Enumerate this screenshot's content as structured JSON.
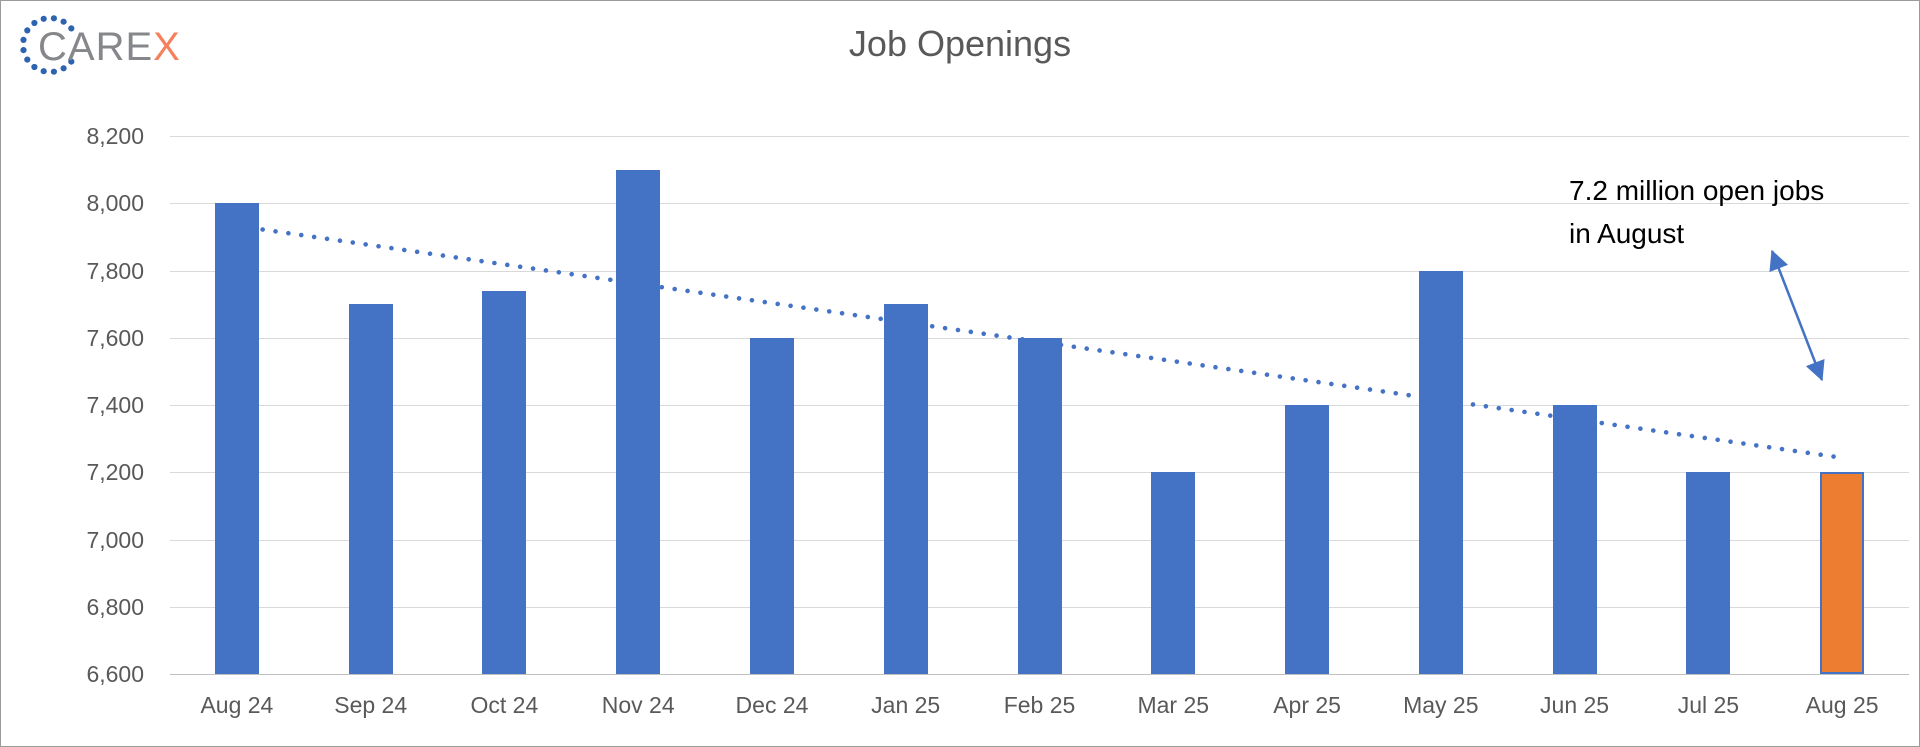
{
  "logo": {
    "text_gray": "CARE",
    "text_accent": "X",
    "dot_color": "#2E63B0",
    "text_gray_color": "#85878A",
    "text_accent_color": "#F5805B"
  },
  "colors": {
    "bar": "#4472C4",
    "highlight_bar": "#ED7D31",
    "highlight_border": "#4472C4",
    "trendline": "#4472C4",
    "arrow": "#4472C4",
    "gridline": "#D9D9D9",
    "axis_line": "#BFBFBF",
    "tick_text": "#595959",
    "title_text": "#595959",
    "annotation_text": "#000000",
    "background": "#FFFFFF"
  },
  "chart_data": {
    "type": "bar",
    "title": "Job Openings",
    "xlabel": "",
    "ylabel": "",
    "categories": [
      "Aug 24",
      "Sep 24",
      "Oct 24",
      "Nov 24",
      "Dec 24",
      "Jan 25",
      "Feb 25",
      "Mar 25",
      "Apr 25",
      "May 25",
      "Jun 25",
      "Jul 25",
      "Aug 25"
    ],
    "values": [
      8000,
      7700,
      7740,
      8100,
      7600,
      7700,
      7600,
      7200,
      7400,
      7800,
      7400,
      7200,
      7200
    ],
    "highlight_index": 12,
    "ylim": [
      6600,
      8200
    ],
    "yticks": [
      {
        "value": 6600,
        "label": "6,600"
      },
      {
        "value": 6800,
        "label": "6,800"
      },
      {
        "value": 7000,
        "label": "7,000"
      },
      {
        "value": 7200,
        "label": "7,200"
      },
      {
        "value": 7400,
        "label": "7,400"
      },
      {
        "value": 7600,
        "label": "7,600"
      },
      {
        "value": 7800,
        "label": "7,800"
      },
      {
        "value": 8000,
        "label": "8,000"
      },
      {
        "value": 8200,
        "label": "8,200"
      }
    ],
    "grid": "horizontal",
    "legend": "none",
    "trendline": {
      "style": "dotted",
      "span": "first-to-last-category",
      "start_value": 7933,
      "end_value": 7243
    },
    "annotation": {
      "line1": "7.2 million open jobs",
      "line2": "in August"
    }
  }
}
